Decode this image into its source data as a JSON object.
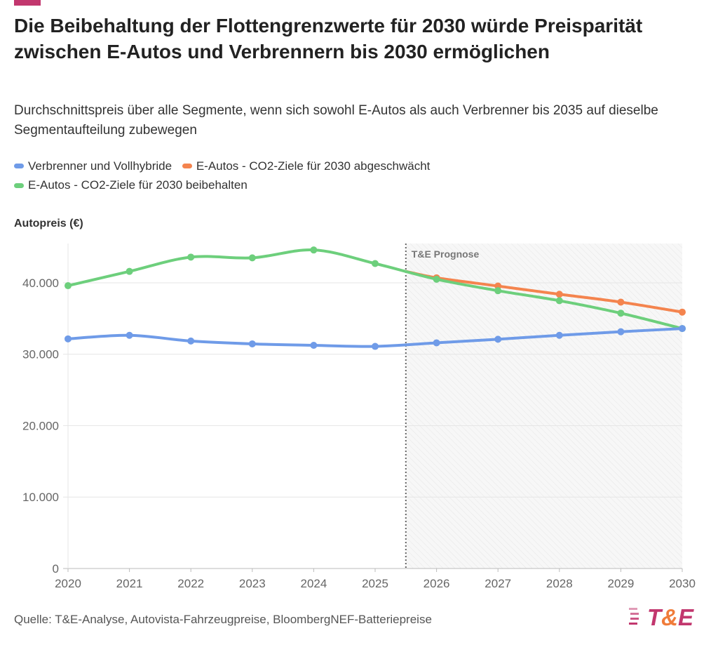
{
  "header": {
    "title": "Die Beibehaltung der Flottengrenzwerte für 2030 würde Preisparität zwischen E-Autos und Verbrennern bis 2030 ermöglichen",
    "subtitle": "Durchschnittspreis über alle Segmente, wenn sich sowohl E-Autos als auch Verbrenner bis 2035 auf dieselbe Segmentaufteilung zubewegen"
  },
  "footer": {
    "source": "Quelle: T&E-Analyse, Autovista-Fahrzeugpreise, BloombergNEF-Batteriepreise",
    "logo_text": "T&E"
  },
  "colors": {
    "accent": "#c2376e",
    "logo_amp": "#f07c3a"
  },
  "chart_data": {
    "type": "line",
    "ylabel": "Autopreis (€)",
    "x": [
      2020,
      2021,
      2022,
      2023,
      2024,
      2025,
      2026,
      2027,
      2028,
      2029,
      2030
    ],
    "x_tick_labels": [
      "2020",
      "2021",
      "2022",
      "2023",
      "2024",
      "2025",
      "2026",
      "2027",
      "2028",
      "2029",
      "2030"
    ],
    "y_ticks": [
      0,
      10000,
      20000,
      30000,
      40000
    ],
    "y_tick_labels": [
      "0",
      "10.000",
      "20.000",
      "30.000",
      "40.000"
    ],
    "ylim": [
      0,
      45500
    ],
    "grid": true,
    "legend_placement": "top",
    "annotation": {
      "label": "T&E Prognose",
      "from_x": 2025.5,
      "to_x": 2030,
      "style": "hatched shaded region with dotted line"
    },
    "series": [
      {
        "name": "Verbrenner und Vollhybride",
        "color": "#6f9be8",
        "values": [
          32150,
          32650,
          31850,
          31450,
          31250,
          31100,
          31600,
          32100,
          32650,
          33150,
          33600
        ]
      },
      {
        "name": "E-Autos - CO2-Ziele für 2030 abgeschwächt",
        "color": "#f4844e",
        "values": [
          null,
          null,
          null,
          null,
          null,
          null,
          40700,
          39550,
          38400,
          37300,
          35900
        ]
      },
      {
        "name": "E-Autos - CO2-Ziele für 2030 beibehalten",
        "color": "#6dcf7c",
        "values": [
          39600,
          41600,
          43600,
          43500,
          44600,
          42700,
          40500,
          38900,
          37500,
          35750,
          33600
        ]
      }
    ]
  }
}
